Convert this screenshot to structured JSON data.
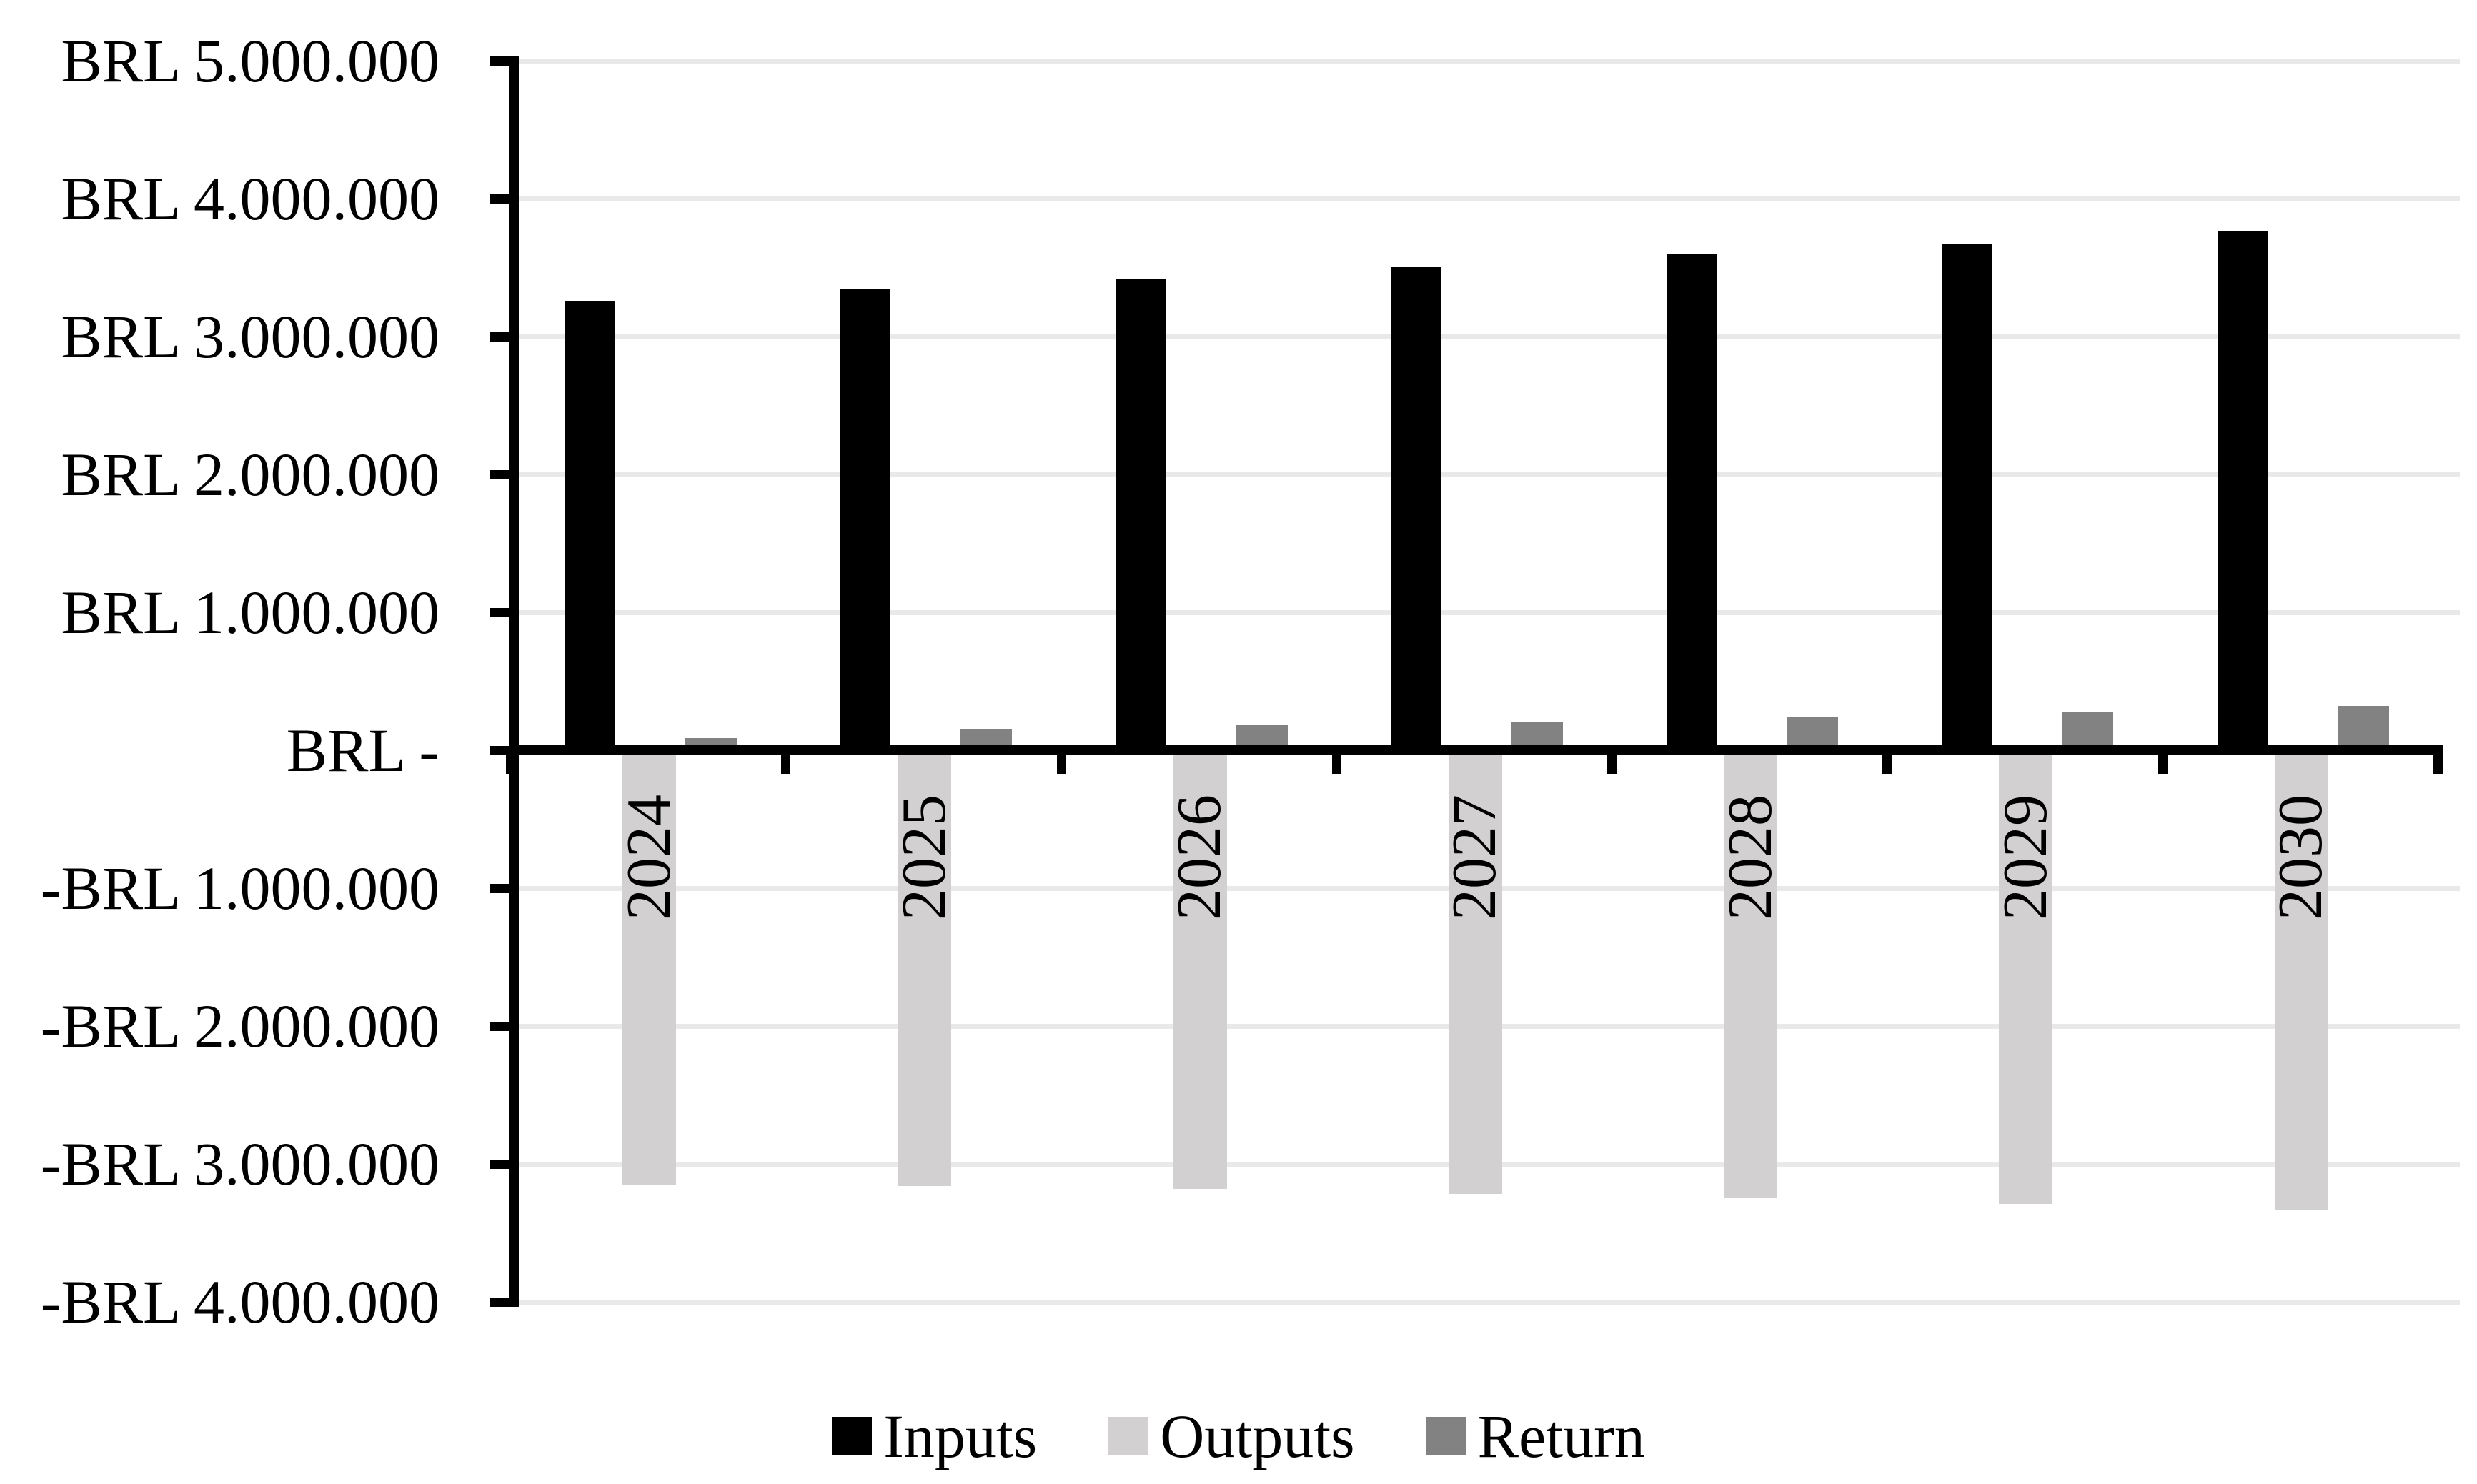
{
  "chart_data": {
    "type": "bar",
    "title": "",
    "xlabel": "",
    "ylabel": "",
    "categories": [
      "2024",
      "2025",
      "2026",
      "2027",
      "2028",
      "2029",
      "2030"
    ],
    "series": [
      {
        "name": "Inputs",
        "color": "#000000",
        "values": [
          3260000,
          3340000,
          3420000,
          3510000,
          3600000,
          3670000,
          3760000
        ]
      },
      {
        "name": "Outputs",
        "color": "#d2d0d0",
        "values": [
          -3150000,
          -3160000,
          -3180000,
          -3220000,
          -3250000,
          -3290000,
          -3330000
        ]
      },
      {
        "name": "Return",
        "color": "#828282",
        "values": [
          90000,
          150000,
          180000,
          200000,
          240000,
          280000,
          320000
        ]
      }
    ],
    "y_axis": {
      "max": 5000000,
      "min": -4000000,
      "step": 1000000,
      "currency": "BRL",
      "tick_labels": [
        "BRL 5.000.000",
        "BRL 4.000.000",
        "BRL 3.000.000",
        "BRL 2.000.000",
        "BRL 1.000.000",
        "BRL -",
        "-BRL 1.000.000",
        "-BRL 2.000.000",
        "-BRL 3.000.000",
        "-BRL 4.000.000"
      ]
    },
    "legend": {
      "position": "bottom",
      "entries": [
        "Inputs",
        "Outputs",
        "Return"
      ]
    },
    "grid": true,
    "category_labels_rotated": true
  },
  "colors": {
    "background": "#ffffff",
    "gridline": "#e9e9e9",
    "axis": "#000000",
    "text": "#000000"
  }
}
